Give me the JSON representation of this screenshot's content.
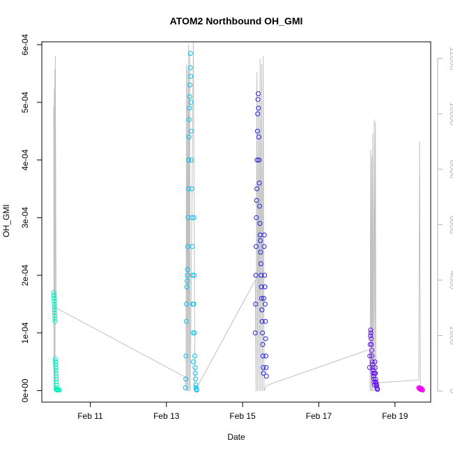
{
  "chart_data": {
    "type": "scatter",
    "title": "ATOM2 Northbound OH_GMI",
    "xlabel": "Date",
    "ylabel": "OH_GMI",
    "xlim": [
      "2017-02-09T17:30",
      "2017-02-19T22:30"
    ],
    "ylim": [
      -2e-05,
      0.000605
    ],
    "y2lim": [
      -400,
      12600
    ],
    "x_ticks": [
      {
        "value": "2017-02-11T00:00",
        "label": "Feb 11"
      },
      {
        "value": "2017-02-13T00:00",
        "label": "Feb 13"
      },
      {
        "value": "2017-02-15T00:00",
        "label": "Feb 15"
      },
      {
        "value": "2017-02-17T00:00",
        "label": "Feb 17"
      },
      {
        "value": "2017-02-19T00:00",
        "label": "Feb 19"
      }
    ],
    "y_ticks": [
      {
        "value": 0,
        "label": "0e+00"
      },
      {
        "value": 0.0001,
        "label": "1e-04"
      },
      {
        "value": 0.0002,
        "label": "2e-04"
      },
      {
        "value": 0.0003,
        "label": "3e-04"
      },
      {
        "value": 0.0004,
        "label": "4e-04"
      },
      {
        "value": 0.0005,
        "label": "5e-04"
      },
      {
        "value": 0.0006,
        "label": "6e-04"
      }
    ],
    "y2_ticks": [
      {
        "value": 0,
        "label": "0"
      },
      {
        "value": 2000,
        "label": "2000"
      },
      {
        "value": 4000,
        "label": "4000"
      },
      {
        "value": 6000,
        "label": "6000"
      },
      {
        "value": 8000,
        "label": "8000"
      },
      {
        "value": 10000,
        "label": "10000"
      },
      {
        "value": 12000,
        "label": "12000"
      }
    ],
    "grid": false,
    "legend": "none",
    "colors": {
      "series1": "#00f0c0",
      "series2": "#00bff0",
      "series3": "#2020e0",
      "series4": "#6010f0",
      "series5": "#f000f0",
      "altitude": "#c0c0c0"
    },
    "series": [
      {
        "color_key": "series1",
        "points": [
          [
            "2017-02-10T01:00",
            0.00017
          ],
          [
            "2017-02-10T01:05",
            0.000165
          ],
          [
            "2017-02-10T01:10",
            0.00016
          ],
          [
            "2017-02-10T01:15",
            0.000155
          ],
          [
            "2017-02-10T01:20",
            0.00015
          ],
          [
            "2017-02-10T01:25",
            0.000145
          ],
          [
            "2017-02-10T01:30",
            0.00014
          ],
          [
            "2017-02-10T01:35",
            0.000135
          ],
          [
            "2017-02-10T01:40",
            0.00013
          ],
          [
            "2017-02-10T01:45",
            0.000125
          ],
          [
            "2017-02-10T01:50",
            0.00012
          ],
          [
            "2017-02-10T02:00",
            5.5e-05
          ],
          [
            "2017-02-10T02:05",
            5e-05
          ],
          [
            "2017-02-10T02:10",
            4.5e-05
          ],
          [
            "2017-02-10T02:15",
            4e-05
          ],
          [
            "2017-02-10T02:20",
            3.5e-05
          ],
          [
            "2017-02-10T02:25",
            3e-05
          ],
          [
            "2017-02-10T02:30",
            2.5e-05
          ],
          [
            "2017-02-10T02:35",
            2e-05
          ],
          [
            "2017-02-10T02:40",
            1.5e-05
          ],
          [
            "2017-02-10T02:45",
            1e-05
          ],
          [
            "2017-02-10T02:50",
            5e-06
          ],
          [
            "2017-02-10T02:55",
            2e-06
          ],
          [
            "2017-02-10T03:00",
            1e-06
          ],
          [
            "2017-02-10T03:30",
            1e-06
          ],
          [
            "2017-02-10T04:00",
            1e-06
          ],
          [
            "2017-02-10T04:30",
            1e-06
          ]
        ]
      },
      {
        "color_key": "series2",
        "points": [
          [
            "2017-02-13T12:00",
            5e-06
          ],
          [
            "2017-02-13T12:10",
            2e-05
          ],
          [
            "2017-02-13T12:20",
            6e-05
          ],
          [
            "2017-02-13T12:30",
            0.00012
          ],
          [
            "2017-02-13T12:40",
            0.00015
          ],
          [
            "2017-02-13T12:50",
            0.00018
          ],
          [
            "2017-02-13T13:00",
            0.00019
          ],
          [
            "2017-02-13T13:10",
            0.0002
          ],
          [
            "2017-02-13T13:20",
            0.00021
          ],
          [
            "2017-02-13T13:30",
            0.00025
          ],
          [
            "2017-02-13T13:40",
            0.0003
          ],
          [
            "2017-02-13T13:50",
            0.00035
          ],
          [
            "2017-02-13T14:00",
            0.0004
          ],
          [
            "2017-02-13T14:10",
            0.00044
          ],
          [
            "2017-02-13T14:20",
            0.00047
          ],
          [
            "2017-02-13T14:30",
            0.00049
          ],
          [
            "2017-02-13T14:40",
            0.00051
          ],
          [
            "2017-02-13T14:50",
            0.00053
          ],
          [
            "2017-02-13T15:00",
            0.00056
          ],
          [
            "2017-02-13T15:10",
            0.000585
          ],
          [
            "2017-02-13T15:20",
            0.000545
          ],
          [
            "2017-02-13T15:30",
            0.0005
          ],
          [
            "2017-02-13T15:40",
            0.00045
          ],
          [
            "2017-02-13T15:50",
            0.0004
          ],
          [
            "2017-02-13T16:00",
            0.00035
          ],
          [
            "2017-02-13T16:10",
            0.0003
          ],
          [
            "2017-02-13T16:20",
            0.00025
          ],
          [
            "2017-02-13T16:30",
            0.0002
          ],
          [
            "2017-02-13T16:40",
            0.00015
          ],
          [
            "2017-02-13T16:50",
            0.0001
          ],
          [
            "2017-02-13T17:00",
            5e-05
          ],
          [
            "2017-02-13T17:10",
            0.00015
          ],
          [
            "2017-02-13T17:20",
            0.0003
          ],
          [
            "2017-02-13T17:30",
            0.0002
          ],
          [
            "2017-02-13T17:40",
            0.0001
          ],
          [
            "2017-02-13T17:50",
            6e-05
          ],
          [
            "2017-02-13T18:00",
            4e-05
          ],
          [
            "2017-02-13T18:10",
            3e-05
          ],
          [
            "2017-02-13T18:20",
            2e-05
          ],
          [
            "2017-02-13T18:30",
            1e-05
          ],
          [
            "2017-02-13T18:40",
            5e-06
          ],
          [
            "2017-02-13T18:50",
            2e-06
          ],
          [
            "2017-02-13T19:00",
            1e-06
          ]
        ]
      },
      {
        "color_key": "series3",
        "points": [
          [
            "2017-02-15T08:00",
            0.0001
          ],
          [
            "2017-02-15T08:10",
            0.00015
          ],
          [
            "2017-02-15T08:20",
            0.0002
          ],
          [
            "2017-02-15T08:30",
            0.00025
          ],
          [
            "2017-02-15T08:40",
            0.0003
          ],
          [
            "2017-02-15T08:50",
            0.00033
          ],
          [
            "2017-02-15T09:00",
            0.00035
          ],
          [
            "2017-02-15T09:10",
            0.0004
          ],
          [
            "2017-02-15T09:20",
            0.00045
          ],
          [
            "2017-02-15T09:30",
            0.00048
          ],
          [
            "2017-02-15T09:40",
            0.000505
          ],
          [
            "2017-02-15T09:50",
            0.000515
          ],
          [
            "2017-02-15T10:00",
            0.00049
          ],
          [
            "2017-02-15T10:10",
            0.00044
          ],
          [
            "2017-02-15T10:20",
            0.0004
          ],
          [
            "2017-02-15T10:30",
            0.00036
          ],
          [
            "2017-02-15T10:40",
            0.00032
          ],
          [
            "2017-02-15T10:50",
            0.00029
          ],
          [
            "2017-02-15T11:00",
            0.00027
          ],
          [
            "2017-02-15T11:10",
            0.00026
          ],
          [
            "2017-02-15T11:20",
            0.00024
          ],
          [
            "2017-02-15T11:30",
            0.00022
          ],
          [
            "2017-02-15T11:40",
            0.0002
          ],
          [
            "2017-02-15T11:50",
            0.00018
          ],
          [
            "2017-02-15T12:00",
            0.00016
          ],
          [
            "2017-02-15T12:10",
            0.00014
          ],
          [
            "2017-02-15T12:20",
            0.00012
          ],
          [
            "2017-02-15T12:30",
            0.0001
          ],
          [
            "2017-02-15T12:40",
            8e-05
          ],
          [
            "2017-02-15T12:50",
            6e-05
          ],
          [
            "2017-02-15T13:00",
            4e-05
          ],
          [
            "2017-02-15T13:10",
            3e-05
          ],
          [
            "2017-02-15T13:20",
            0.00016
          ],
          [
            "2017-02-15T13:30",
            0.00025
          ],
          [
            "2017-02-15T13:40",
            0.00027
          ],
          [
            "2017-02-15T13:50",
            0.0002
          ],
          [
            "2017-02-15T14:00",
            0.00018
          ],
          [
            "2017-02-15T14:10",
            0.00015
          ],
          [
            "2017-02-15T14:20",
            0.00012
          ],
          [
            "2017-02-15T14:30",
            9e-05
          ],
          [
            "2017-02-15T14:40",
            6e-05
          ],
          [
            "2017-02-15T14:50",
            4e-05
          ],
          [
            "2017-02-15T15:00",
            2.5e-05
          ]
        ]
      },
      {
        "color_key": "series4",
        "points": [
          [
            "2017-02-18T08:00",
            4e-05
          ],
          [
            "2017-02-18T08:10",
            6e-05
          ],
          [
            "2017-02-18T08:20",
            8e-05
          ],
          [
            "2017-02-18T08:30",
            9.5e-05
          ],
          [
            "2017-02-18T08:40",
            0.000105
          ],
          [
            "2017-02-18T08:50",
            0.0001
          ],
          [
            "2017-02-18T09:00",
            9e-05
          ],
          [
            "2017-02-18T09:10",
            8e-05
          ],
          [
            "2017-02-18T09:20",
            7e-05
          ],
          [
            "2017-02-18T09:30",
            6e-05
          ],
          [
            "2017-02-18T09:40",
            5e-05
          ],
          [
            "2017-02-18T09:50",
            4.5e-05
          ],
          [
            "2017-02-18T10:00",
            4e-05
          ],
          [
            "2017-02-18T10:10",
            3.5e-05
          ],
          [
            "2017-02-18T10:20",
            3e-05
          ],
          [
            "2017-02-18T10:30",
            2.5e-05
          ],
          [
            "2017-02-18T10:40",
            2e-05
          ],
          [
            "2017-02-18T10:50",
            1.5e-05
          ],
          [
            "2017-02-18T11:00",
            1e-05
          ],
          [
            "2017-02-18T11:10",
            3e-05
          ],
          [
            "2017-02-18T11:20",
            5e-05
          ],
          [
            "2017-02-18T11:30",
            4e-05
          ],
          [
            "2017-02-18T11:40",
            3e-05
          ],
          [
            "2017-02-18T11:50",
            2e-05
          ],
          [
            "2017-02-18T12:00",
            1.5e-05
          ],
          [
            "2017-02-18T12:10",
            1.2e-05
          ],
          [
            "2017-02-18T12:20",
            1e-05
          ],
          [
            "2017-02-18T12:30",
            8e-06
          ],
          [
            "2017-02-18T12:40",
            5e-06
          ],
          [
            "2017-02-18T12:50",
            3e-06
          ],
          [
            "2017-02-18T13:00",
            2e-06
          ]
        ]
      },
      {
        "color_key": "series5",
        "points": [
          [
            "2017-02-19T15:00",
            5e-06
          ],
          [
            "2017-02-19T15:20",
            4e-06
          ],
          [
            "2017-02-19T15:40",
            3e-06
          ],
          [
            "2017-02-19T16:00",
            2e-06
          ],
          [
            "2017-02-19T16:20",
            4e-06
          ],
          [
            "2017-02-19T16:40",
            3e-06
          ],
          [
            "2017-02-19T17:00",
            2e-06
          ],
          [
            "2017-02-19T17:20",
            1e-06
          ]
        ]
      }
    ],
    "altitude_track": [
      [
        "2017-02-10T01:00",
        10300
      ],
      [
        "2017-02-10T01:10",
        0
      ],
      [
        "2017-02-10T01:20",
        10900
      ],
      [
        "2017-02-10T01:30",
        0
      ],
      [
        "2017-02-10T01:40",
        11600
      ],
      [
        "2017-02-10T01:50",
        0
      ],
      [
        "2017-02-10T02:00",
        12100
      ],
      [
        "2017-02-10T02:30",
        3000
      ],
      [
        "2017-02-13T12:00",
        500
      ],
      [
        "2017-02-13T12:20",
        0
      ],
      [
        "2017-02-13T12:40",
        11800
      ],
      [
        "2017-02-13T13:00",
        0
      ],
      [
        "2017-02-13T13:20",
        11600
      ],
      [
        "2017-02-13T13:40",
        0
      ],
      [
        "2017-02-13T14:00",
        12500
      ],
      [
        "2017-02-13T14:20",
        0
      ],
      [
        "2017-02-13T14:40",
        12200
      ],
      [
        "2017-02-13T15:00",
        0
      ],
      [
        "2017-02-13T17:00",
        12600
      ],
      [
        "2017-02-13T18:00",
        0
      ],
      [
        "2017-02-15T08:00",
        4000
      ],
      [
        "2017-02-15T08:30",
        0
      ],
      [
        "2017-02-15T09:00",
        11500
      ],
      [
        "2017-02-15T09:30",
        0
      ],
      [
        "2017-02-15T10:00",
        10400
      ],
      [
        "2017-02-15T10:30",
        0
      ],
      [
        "2017-02-15T11:00",
        12000
      ],
      [
        "2017-02-15T11:30",
        0
      ],
      [
        "2017-02-15T12:00",
        11800
      ],
      [
        "2017-02-15T12:30",
        0
      ],
      [
        "2017-02-15T13:00",
        12100
      ],
      [
        "2017-02-15T13:30",
        0
      ],
      [
        "2017-02-15T15:00",
        200
      ],
      [
        "2017-02-18T08:00",
        1500
      ],
      [
        "2017-02-18T08:20",
        0
      ],
      [
        "2017-02-18T08:40",
        8700
      ],
      [
        "2017-02-18T09:00",
        0
      ],
      [
        "2017-02-18T09:20",
        8500
      ],
      [
        "2017-02-18T09:40",
        0
      ],
      [
        "2017-02-18T10:00",
        9300
      ],
      [
        "2017-02-18T10:20",
        0
      ],
      [
        "2017-02-18T11:00",
        9800
      ],
      [
        "2017-02-18T11:20",
        0
      ],
      [
        "2017-02-18T11:40",
        9700
      ],
      [
        "2017-02-18T12:00",
        0
      ],
      [
        "2017-02-18T13:00",
        300
      ],
      [
        "2017-02-19T15:00",
        400
      ],
      [
        "2017-02-19T15:30",
        9000
      ],
      [
        "2017-02-19T16:00",
        0
      ]
    ]
  }
}
